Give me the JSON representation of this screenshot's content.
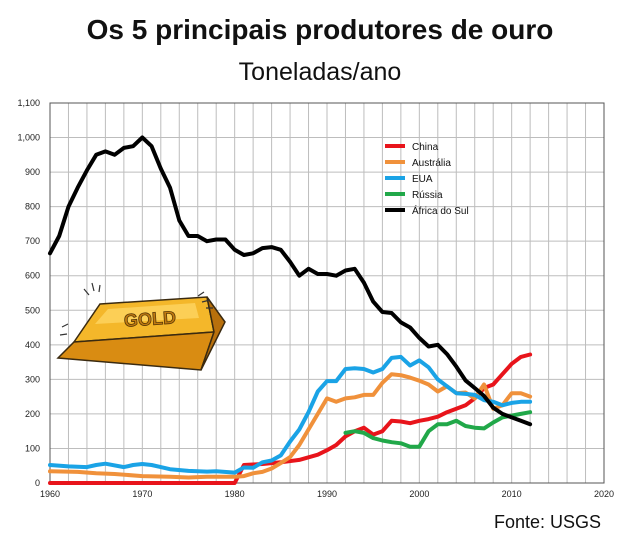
{
  "chart_data": {
    "type": "line",
    "title": "Os 5 principais produtores de ouro",
    "subtitle": "Toneladas/ano",
    "source": "Fonte: USGS",
    "xlim": [
      1960,
      2020
    ],
    "ylim": [
      0,
      1100
    ],
    "x_ticks": [
      "1960",
      "1970",
      "1980",
      "1990",
      "2000",
      "2010",
      "2020"
    ],
    "y_ticks": [
      "0",
      "100",
      "200",
      "300",
      "400",
      "500",
      "600",
      "700",
      "800",
      "900",
      "1,000",
      "1,100"
    ],
    "grid": true,
    "legend_position": "top-right",
    "series": [
      {
        "name": "China",
        "color": "#e8141b",
        "x": [
          1960,
          1965,
          1970,
          1975,
          1980,
          1981,
          1983,
          1985,
          1987,
          1989,
          1990,
          1991,
          1992,
          1993,
          1994,
          1995,
          1996,
          1997,
          1998,
          1999,
          2000,
          2001,
          2002,
          2003,
          2004,
          2005,
          2006,
          2007,
          2008,
          2009,
          2010,
          2011,
          2012
        ],
        "y": [
          0,
          0,
          0,
          0,
          0,
          52,
          55,
          60,
          67,
          82,
          95,
          110,
          135,
          150,
          160,
          140,
          150,
          180,
          178,
          173,
          180,
          185,
          192,
          205,
          215,
          225,
          245,
          275,
          285,
          315,
          345,
          365,
          372
        ]
      },
      {
        "name": "Austrália",
        "color": "#f0913b",
        "x": [
          1960,
          1963,
          1965,
          1967,
          1970,
          1973,
          1975,
          1977,
          1980,
          1981,
          1982,
          1983,
          1984,
          1985,
          1986,
          1987,
          1988,
          1989,
          1990,
          1991,
          1992,
          1993,
          1994,
          1995,
          1996,
          1997,
          1998,
          1999,
          2000,
          2001,
          2002,
          2003,
          2004,
          2005,
          2006,
          2007,
          2008,
          2009,
          2010,
          2011,
          2012
        ],
        "y": [
          34,
          32,
          28,
          26,
          20,
          18,
          16,
          18,
          18,
          20,
          28,
          32,
          42,
          58,
          75,
          110,
          155,
          200,
          245,
          235,
          245,
          248,
          255,
          255,
          290,
          315,
          312,
          305,
          296,
          285,
          265,
          280,
          260,
          262,
          245,
          285,
          215,
          225,
          260,
          260,
          250
        ]
      },
      {
        "name": "EUA",
        "color": "#1aa3e6",
        "x": [
          1960,
          1962,
          1964,
          1965,
          1966,
          1968,
          1969,
          1970,
          1971,
          1972,
          1973,
          1975,
          1977,
          1978,
          1980,
          1981,
          1982,
          1983,
          1984,
          1985,
          1986,
          1987,
          1988,
          1989,
          1990,
          1991,
          1992,
          1993,
          1994,
          1995,
          1996,
          1997,
          1998,
          1999,
          2000,
          2001,
          2002,
          2003,
          2004,
          2005,
          2006,
          2007,
          2008,
          2009,
          2010,
          2011,
          2012
        ],
        "y": [
          52,
          48,
          46,
          52,
          56,
          46,
          52,
          55,
          52,
          46,
          40,
          35,
          33,
          34,
          30,
          45,
          44,
          60,
          65,
          80,
          120,
          155,
          205,
          265,
          295,
          295,
          330,
          332,
          330,
          320,
          330,
          362,
          365,
          340,
          355,
          335,
          300,
          280,
          260,
          258,
          255,
          240,
          235,
          225,
          232,
          235,
          235
        ]
      },
      {
        "name": "Rússia",
        "color": "#21a849",
        "x": [
          1992,
          1993,
          1994,
          1995,
          1996,
          1997,
          1998,
          1999,
          2000,
          2001,
          2002,
          2003,
          2004,
          2005,
          2006,
          2007,
          2008,
          2009,
          2010,
          2011,
          2012
        ],
        "y": [
          145,
          150,
          145,
          130,
          123,
          118,
          115,
          105,
          105,
          150,
          170,
          170,
          180,
          165,
          160,
          158,
          175,
          190,
          195,
          200,
          205
        ]
      },
      {
        "name": "África do Sul",
        "color": "#000000",
        "x": [
          1960,
          1961,
          1962,
          1963,
          1964,
          1965,
          1966,
          1967,
          1968,
          1969,
          1970,
          1971,
          1972,
          1973,
          1974,
          1975,
          1976,
          1977,
          1978,
          1979,
          1980,
          1981,
          1982,
          1983,
          1984,
          1985,
          1986,
          1987,
          1988,
          1989,
          1990,
          1991,
          1992,
          1993,
          1994,
          1995,
          1996,
          1997,
          1998,
          1999,
          2000,
          2001,
          2002,
          2003,
          2004,
          2005,
          2006,
          2007,
          2008,
          2009,
          2010,
          2011,
          2012
        ],
        "y": [
          665,
          715,
          800,
          855,
          905,
          950,
          960,
          950,
          970,
          975,
          1000,
          975,
          910,
          855,
          760,
          715,
          715,
          700,
          705,
          705,
          675,
          660,
          665,
          680,
          683,
          675,
          640,
          600,
          620,
          605,
          605,
          600,
          615,
          620,
          580,
          525,
          495,
          492,
          465,
          450,
          420,
          395,
          400,
          373,
          337,
          297,
          275,
          252,
          218,
          200,
          190,
          180,
          170
        ]
      }
    ],
    "illustration": {
      "label": "GOLD"
    }
  }
}
